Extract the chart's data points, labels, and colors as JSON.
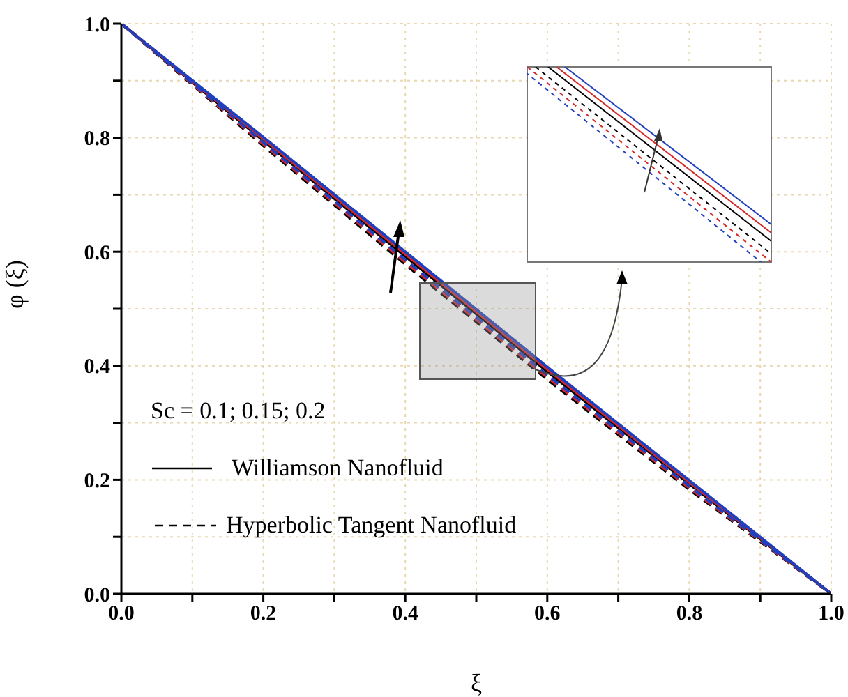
{
  "chart_data": {
    "type": "line",
    "xlabel": "ξ",
    "ylabel": "φ (ξ)",
    "xlim": [
      0,
      1
    ],
    "ylim": [
      0,
      1
    ],
    "xticks": [
      {
        "value": 0,
        "label": "0.0"
      },
      {
        "value": 0.1,
        "label": null
      },
      0.2,
      {
        "value": 0.3,
        "label": null
      },
      0.4,
      {
        "value": 0.5,
        "label": null
      },
      0.6,
      {
        "value": 0.7,
        "label": null
      },
      0.8,
      {
        "value": 0.9,
        "label": null
      },
      {
        "value": 1,
        "label": "1.0"
      }
    ],
    "yticks": [
      {
        "value": 0,
        "label": "0.0"
      },
      {
        "value": 0.1,
        "label": null
      },
      0.2,
      {
        "value": 0.3,
        "label": null
      },
      0.4,
      {
        "value": 0.5,
        "label": null
      },
      0.6,
      {
        "value": 0.7,
        "label": null
      },
      0.8,
      {
        "value": 0.9,
        "label": null
      },
      {
        "value": 1,
        "label": "1.0"
      }
    ],
    "grid": true,
    "legend": false,
    "marker": "none",
    "x": [
      0,
      0.2,
      0.4,
      0.6,
      0.8,
      1
    ],
    "series": [
      {
        "color": "#000000",
        "line_style": "solid",
        "values": [
          1,
          0.795,
          0.592,
          0.39,
          0.193,
          0
        ]
      },
      {
        "color": "#d62728",
        "line_style": "solid",
        "values": [
          1,
          0.798,
          0.596,
          0.394,
          0.196,
          0
        ]
      },
      {
        "color": "#1f3fbf",
        "line_style": "solid",
        "values": [
          1,
          0.801,
          0.6,
          0.398,
          0.199,
          0
        ]
      },
      {
        "color": "#000000",
        "line_style": "dashed",
        "values": [
          1,
          0.786,
          0.578,
          0.376,
          0.183,
          0
        ]
      },
      {
        "color": "#d62728",
        "line_style": "dashed",
        "values": [
          1,
          0.789,
          0.582,
          0.38,
          0.186,
          0
        ]
      },
      {
        "color": "#1f3fbf",
        "line_style": "dashed",
        "values": [
          1,
          0.792,
          0.586,
          0.384,
          0.189,
          0
        ]
      }
    ],
    "annotations": [
      "Sc = 0.1; 0.15; 0.2",
      "Williamson Nanofluid",
      "Hyperbolic Tangent Nanofluid"
    ]
  }
}
